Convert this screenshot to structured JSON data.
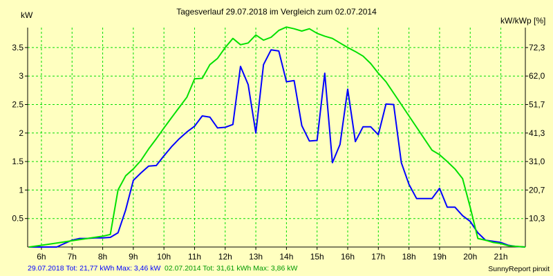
{
  "chart_data": {
    "type": "line",
    "title": "Tagesverlauf 29.07.2018 im Vergleich zum 02.07.2014",
    "ylabel_left": "kW",
    "ylabel_right": "kW/kWp [%]",
    "xlim": [
      5.55,
      21.8
    ],
    "ylim": [
      0,
      3.85
    ],
    "x_ticks": [
      {
        "value": 6,
        "label": "6h"
      },
      {
        "value": 7,
        "label": "7h"
      },
      {
        "value": 8,
        "label": "8h"
      },
      {
        "value": 9,
        "label": "9h"
      },
      {
        "value": 10,
        "label": "10h"
      },
      {
        "value": 11,
        "label": "11h"
      },
      {
        "value": 12,
        "label": "12h"
      },
      {
        "value": 13,
        "label": "13h"
      },
      {
        "value": 14,
        "label": "14h"
      },
      {
        "value": 15,
        "label": "15h"
      },
      {
        "value": 16,
        "label": "16h"
      },
      {
        "value": 17,
        "label": "17h"
      },
      {
        "value": 18,
        "label": "18h"
      },
      {
        "value": 19,
        "label": "19h"
      },
      {
        "value": 20,
        "label": "20h"
      },
      {
        "value": 21,
        "label": "21h"
      }
    ],
    "y_ticks_left": [
      {
        "value": 0.5,
        "label": "0.5"
      },
      {
        "value": 1,
        "label": "1"
      },
      {
        "value": 1.5,
        "label": "1.5"
      },
      {
        "value": 2,
        "label": "2"
      },
      {
        "value": 2.5,
        "label": "2.5"
      },
      {
        "value": 3,
        "label": "3"
      },
      {
        "value": 3.5,
        "label": "3.5"
      }
    ],
    "y_ticks_right": [
      "10,3",
      "20,7",
      "31,0",
      "41,3",
      "51,7",
      "62,0",
      "72,3"
    ],
    "grid": true,
    "series": [
      {
        "name": "29.07.2018",
        "color": "#0000ff",
        "points": [
          [
            5.6,
            0
          ],
          [
            6.0,
            0
          ],
          [
            6.5,
            0
          ],
          [
            6.7,
            0.05
          ],
          [
            7.0,
            0.12
          ],
          [
            7.25,
            0.15
          ],
          [
            7.5,
            0.15
          ],
          [
            7.75,
            0.16
          ],
          [
            8.0,
            0.16
          ],
          [
            8.25,
            0.17
          ],
          [
            8.5,
            0.25
          ],
          [
            8.75,
            0.65
          ],
          [
            9.0,
            1.17
          ],
          [
            9.25,
            1.3
          ],
          [
            9.5,
            1.42
          ],
          [
            9.75,
            1.43
          ],
          [
            10.0,
            1.6
          ],
          [
            10.25,
            1.76
          ],
          [
            10.5,
            1.9
          ],
          [
            10.75,
            2.02
          ],
          [
            11.0,
            2.12
          ],
          [
            11.25,
            2.3
          ],
          [
            11.5,
            2.28
          ],
          [
            11.75,
            2.09
          ],
          [
            12.0,
            2.1
          ],
          [
            12.25,
            2.15
          ],
          [
            12.5,
            3.17
          ],
          [
            12.75,
            2.85
          ],
          [
            13.0,
            2.0
          ],
          [
            13.25,
            3.2
          ],
          [
            13.5,
            3.46
          ],
          [
            13.75,
            3.44
          ],
          [
            14.0,
            2.9
          ],
          [
            14.25,
            2.92
          ],
          [
            14.5,
            2.13
          ],
          [
            14.75,
            1.86
          ],
          [
            15.0,
            1.87
          ],
          [
            15.25,
            3.05
          ],
          [
            15.5,
            1.48
          ],
          [
            15.75,
            1.8
          ],
          [
            16.0,
            2.77
          ],
          [
            16.25,
            1.85
          ],
          [
            16.5,
            2.11
          ],
          [
            16.75,
            2.11
          ],
          [
            17.0,
            1.97
          ],
          [
            17.25,
            2.51
          ],
          [
            17.5,
            2.5
          ],
          [
            17.75,
            1.48
          ],
          [
            18.0,
            1.1
          ],
          [
            18.25,
            0.85
          ],
          [
            18.5,
            0.85
          ],
          [
            18.75,
            0.85
          ],
          [
            19.0,
            1.03
          ],
          [
            19.25,
            0.7
          ],
          [
            19.5,
            0.7
          ],
          [
            19.75,
            0.55
          ],
          [
            20.0,
            0.45
          ],
          [
            20.25,
            0.25
          ],
          [
            20.5,
            0.12
          ],
          [
            20.75,
            0.1
          ],
          [
            21.0,
            0.08
          ],
          [
            21.25,
            0.03
          ],
          [
            21.5,
            0.01
          ],
          [
            21.8,
            0
          ]
        ]
      },
      {
        "name": "02.07.2014",
        "color": "#00e000",
        "points": [
          [
            5.6,
            0
          ],
          [
            6.0,
            0.03
          ],
          [
            6.5,
            0.07
          ],
          [
            7.0,
            0.11
          ],
          [
            7.5,
            0.15
          ],
          [
            8.0,
            0.19
          ],
          [
            8.25,
            0.22
          ],
          [
            8.5,
            1.0
          ],
          [
            8.75,
            1.25
          ],
          [
            9.0,
            1.37
          ],
          [
            9.25,
            1.52
          ],
          [
            9.5,
            1.72
          ],
          [
            9.75,
            1.9
          ],
          [
            10.0,
            2.09
          ],
          [
            10.25,
            2.27
          ],
          [
            10.5,
            2.45
          ],
          [
            10.75,
            2.63
          ],
          [
            11.0,
            2.95
          ],
          [
            11.25,
            2.96
          ],
          [
            11.5,
            3.2
          ],
          [
            11.75,
            3.31
          ],
          [
            12.0,
            3.5
          ],
          [
            12.25,
            3.66
          ],
          [
            12.5,
            3.55
          ],
          [
            12.75,
            3.58
          ],
          [
            13.0,
            3.72
          ],
          [
            13.25,
            3.63
          ],
          [
            13.5,
            3.68
          ],
          [
            13.75,
            3.8
          ],
          [
            14.0,
            3.86
          ],
          [
            14.25,
            3.83
          ],
          [
            14.5,
            3.79
          ],
          [
            14.75,
            3.83
          ],
          [
            15.0,
            3.75
          ],
          [
            15.25,
            3.7
          ],
          [
            15.5,
            3.66
          ],
          [
            15.75,
            3.58
          ],
          [
            16.0,
            3.5
          ],
          [
            16.25,
            3.43
          ],
          [
            16.5,
            3.35
          ],
          [
            16.75,
            3.22
          ],
          [
            17.0,
            3.05
          ],
          [
            17.25,
            2.9
          ],
          [
            17.5,
            2.7
          ],
          [
            17.75,
            2.5
          ],
          [
            18.0,
            2.3
          ],
          [
            18.25,
            2.1
          ],
          [
            18.5,
            1.9
          ],
          [
            18.75,
            1.7
          ],
          [
            19.0,
            1.62
          ],
          [
            19.25,
            1.5
          ],
          [
            19.5,
            1.37
          ],
          [
            19.75,
            1.2
          ],
          [
            20.0,
            0.7
          ],
          [
            20.25,
            0.15
          ],
          [
            20.5,
            0.12
          ],
          [
            20.75,
            0.08
          ],
          [
            21.0,
            0.06
          ],
          [
            21.25,
            0.02
          ],
          [
            21.8,
            0
          ]
        ]
      }
    ],
    "legend": {
      "placement": "bottom-left",
      "entries": [
        {
          "text": "29.07.2018 Tot: 21,77 kWh Max: 3,46 kW",
          "color": "#0000ff"
        },
        {
          "text": "02.07.2014 Tot: 31,61 kWh Max: 3,86 kW",
          "color": "#009900"
        }
      ]
    },
    "footer_right": "SunnyReport pinxit"
  },
  "style": {
    "background": "#ffffc0",
    "grid_color": "#00dd00",
    "axis_color": "#000000"
  }
}
